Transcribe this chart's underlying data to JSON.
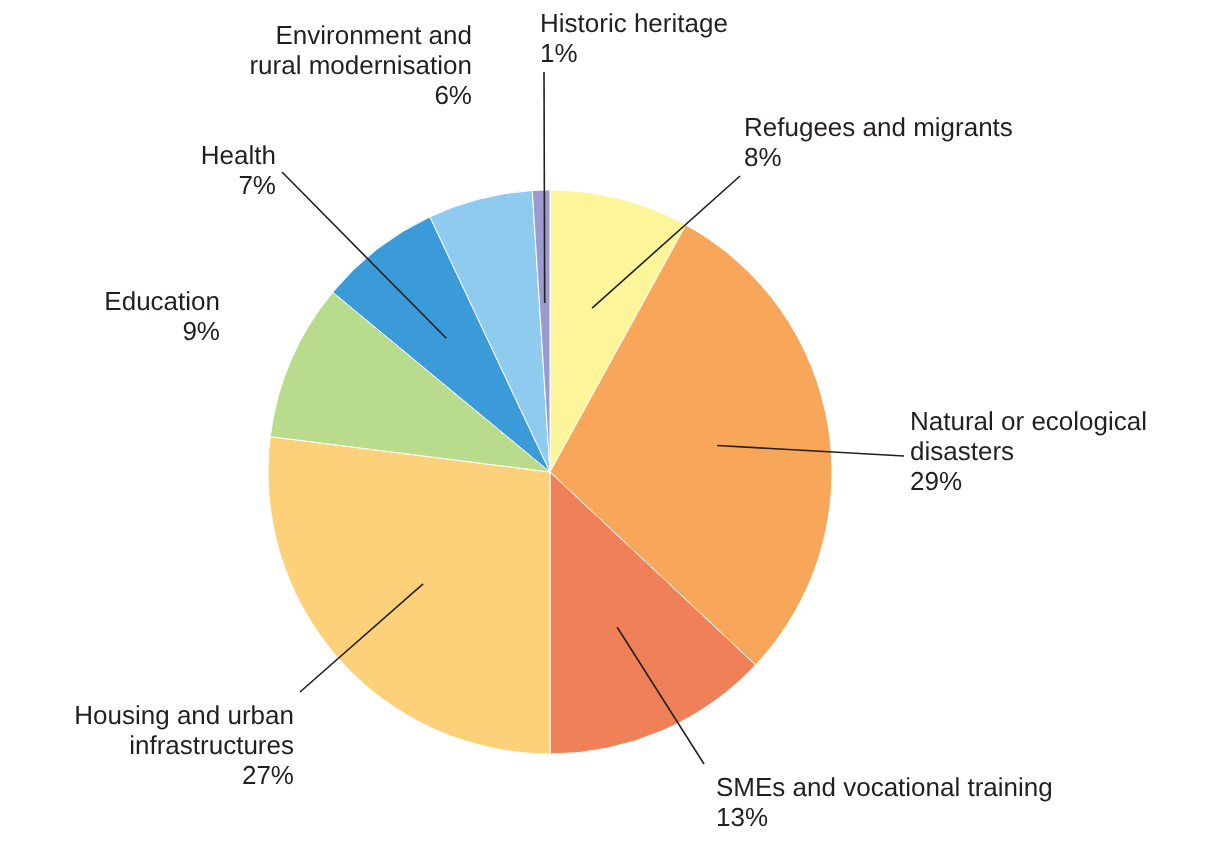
{
  "chart_data": {
    "type": "pie",
    "categories": [
      "Refugees and migrants",
      "Natural or ecological disasters",
      "SMEs and vocational training",
      "Housing and urban infrastructures",
      "Education",
      "Health",
      "Environment and rural modernisation",
      "Historic heritage"
    ],
    "values": [
      8,
      29,
      13,
      27,
      9,
      7,
      6,
      1
    ],
    "value_labels": [
      "8%",
      "29%",
      "13%",
      "27%",
      "9%",
      "7%",
      "6%",
      "1%"
    ],
    "colors": [
      "#fdf59a",
      "#f7a65a",
      "#f08058",
      "#fdd07a",
      "#b9dc8c",
      "#3a9bd8",
      "#8ecbee",
      "#9b9bd0"
    ]
  }
}
